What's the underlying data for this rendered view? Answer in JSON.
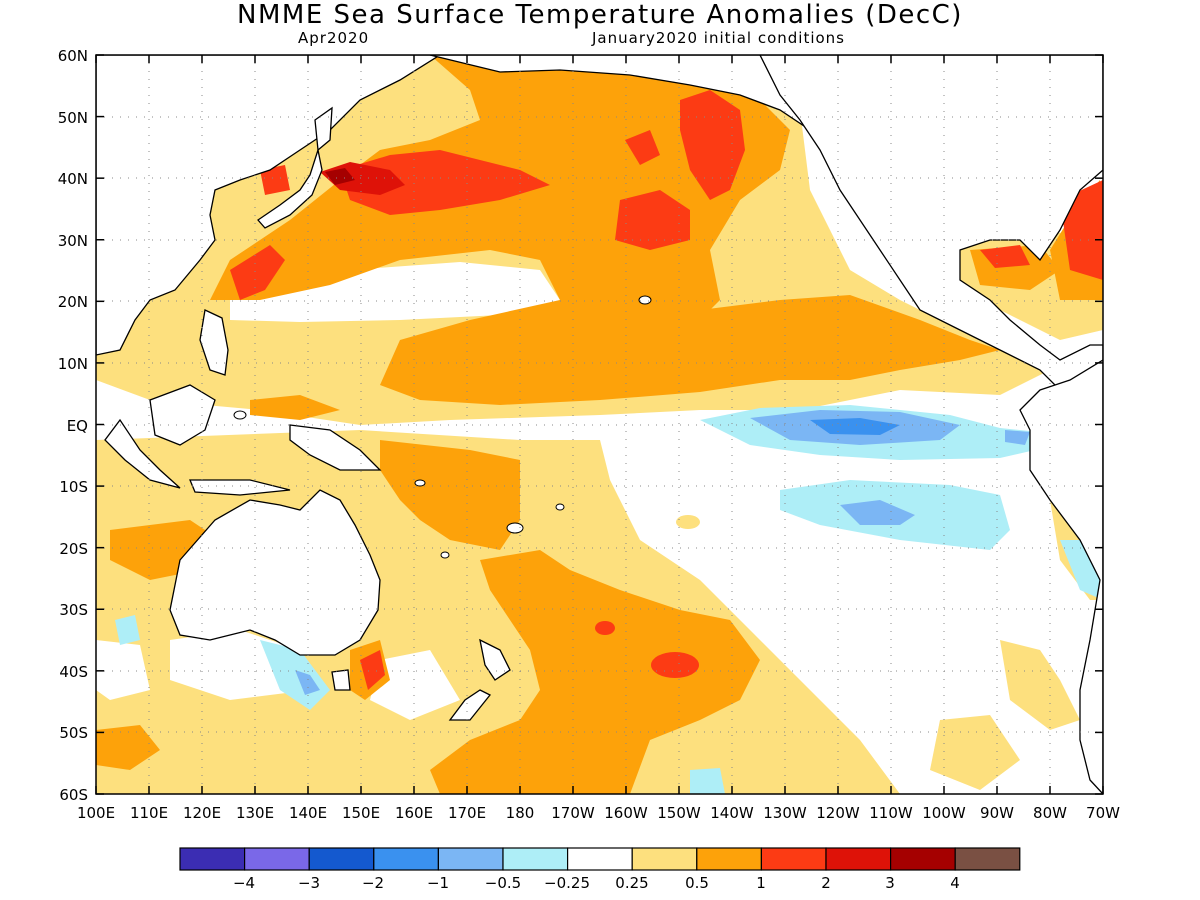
{
  "title": "NMME Sea Surface Temperature Anomalies (DecC)",
  "subtitle_left": "Apr2020",
  "subtitle_right": "January2020 initial conditions",
  "lat_labels": [
    "60N",
    "50N",
    "40N",
    "30N",
    "20N",
    "10N",
    "EQ",
    "10S",
    "20S",
    "30S",
    "40S",
    "50S",
    "60S"
  ],
  "lon_labels": [
    "100E",
    "110E",
    "120E",
    "130E",
    "140E",
    "150E",
    "160E",
    "170E",
    "180",
    "170W",
    "160W",
    "150W",
    "140W",
    "130W",
    "120W",
    "110W",
    "100W",
    "90W",
    "80W",
    "70W"
  ],
  "legend": {
    "colors": [
      "#3b2db3",
      "#7a68e8",
      "#1459cf",
      "#3a91ef",
      "#7bb6f4",
      "#aeeef7",
      "#ffffff",
      "#fde07e",
      "#fda20a",
      "#fc3b14",
      "#de1208",
      "#a50000",
      "#7a5043"
    ],
    "labels": [
      "−4",
      "−3",
      "−2",
      "−1",
      "−0.5",
      "−0.25",
      "0.25",
      "0.5",
      "1",
      "2",
      "3",
      "4"
    ]
  },
  "map": {
    "lon_range": [
      "100E",
      "70W"
    ],
    "lat_range": [
      "60S",
      "60N"
    ],
    "grid": "dotted"
  }
}
